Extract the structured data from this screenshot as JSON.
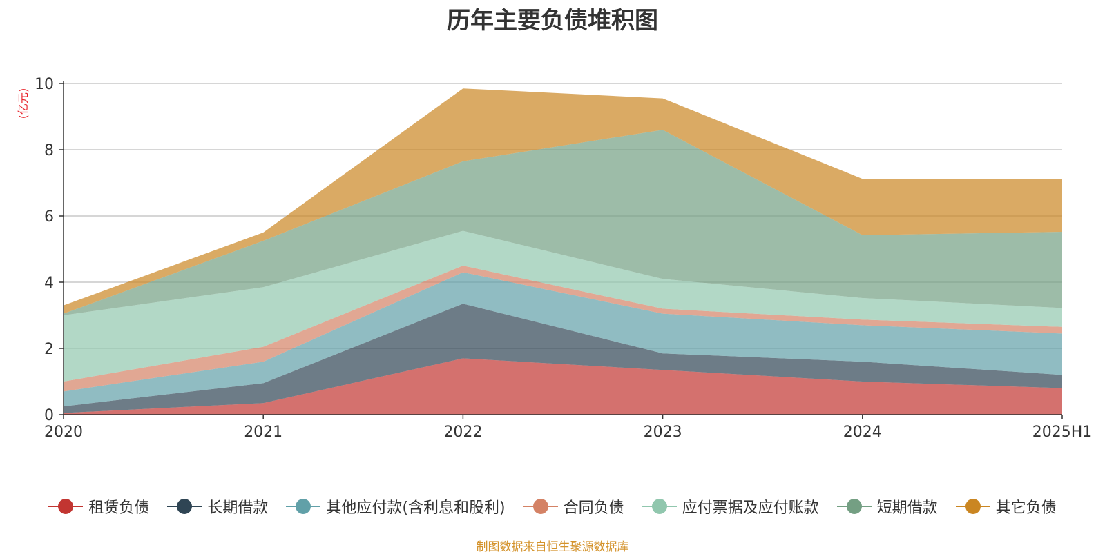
{
  "chart_data": {
    "type": "area",
    "stacked": true,
    "title": "历年主要负债堆积图",
    "ylabel": "(亿元)",
    "xlabel": "",
    "ylim": [
      0,
      10
    ],
    "yticks": [
      0,
      2,
      4,
      6,
      8,
      10
    ],
    "grid": true,
    "legend_position": "bottom",
    "categories": [
      "2020",
      "2021",
      "2022",
      "2023",
      "2024",
      "2025H1"
    ],
    "series": [
      {
        "name": "租赁负债",
        "color": "#c23531",
        "values": [
          0.05,
          0.35,
          1.7,
          1.35,
          1.0,
          0.8
        ]
      },
      {
        "name": "长期借款",
        "color": "#2f4554",
        "values": [
          0.2,
          0.6,
          1.65,
          0.5,
          0.6,
          0.4
        ]
      },
      {
        "name": "其他应付款(含利息和股利)",
        "color": "#61a0a8",
        "values": [
          0.45,
          0.65,
          0.95,
          1.2,
          1.1,
          1.25
        ]
      },
      {
        "name": "合同负债",
        "color": "#d48265",
        "values": [
          0.3,
          0.45,
          0.2,
          0.15,
          0.17,
          0.2
        ]
      },
      {
        "name": "应付票据及应付账款",
        "color": "#91c7ae",
        "values": [
          2.0,
          1.8,
          1.05,
          0.9,
          0.65,
          0.57
        ]
      },
      {
        "name": "短期借款",
        "color": "#749f83",
        "values": [
          0.05,
          1.4,
          2.1,
          4.5,
          1.9,
          2.3
        ]
      },
      {
        "name": "其它负债",
        "color": "#ca8622",
        "values": [
          0.25,
          0.25,
          2.2,
          0.95,
          1.7,
          1.6
        ]
      }
    ]
  },
  "source_note": "制图数据来自恒生聚源数据库"
}
